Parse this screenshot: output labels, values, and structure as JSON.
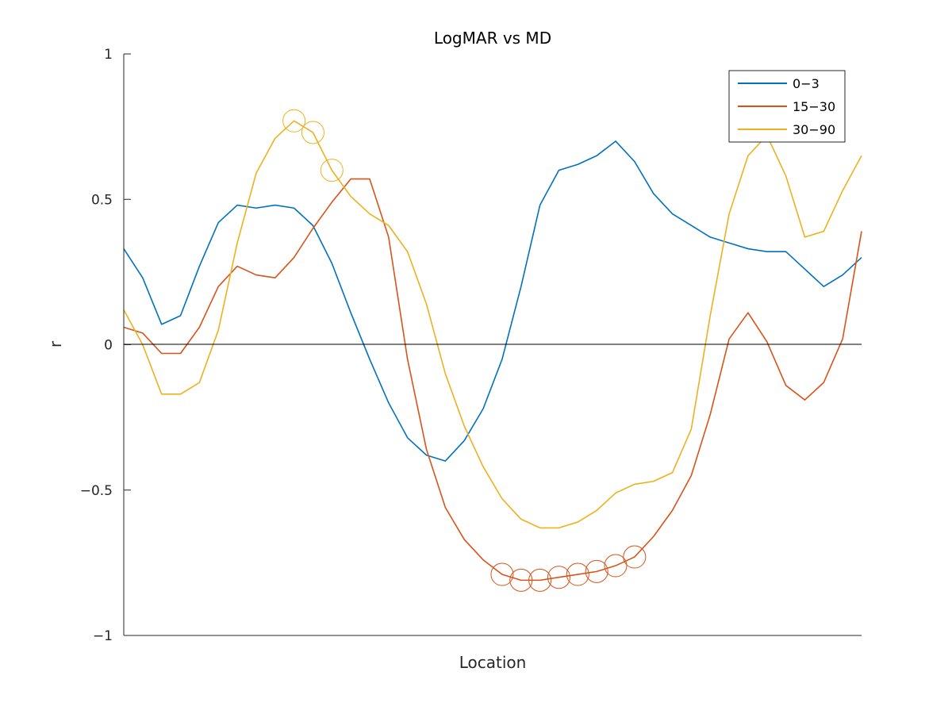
{
  "chart_data": {
    "type": "line",
    "title": "LogMAR vs MD",
    "xlabel": "Location",
    "ylabel": "r",
    "ylim": [
      -1,
      1
    ],
    "xlim": [
      1,
      40
    ],
    "yticks": [
      1,
      0.5,
      0,
      -0.5,
      -1
    ],
    "ytick_labels": [
      "1",
      "0.5",
      "0",
      "−0.5",
      "−1"
    ],
    "xticks_shown": false,
    "grid": false,
    "zero_line": true,
    "legend_position": "top-right",
    "x": [
      1,
      2,
      3,
      4,
      5,
      6,
      7,
      8,
      9,
      10,
      11,
      12,
      13,
      14,
      15,
      16,
      17,
      18,
      19,
      20,
      21,
      22,
      23,
      24,
      25,
      26,
      27,
      28,
      29,
      30,
      31,
      32,
      33,
      34,
      35,
      36,
      37,
      38,
      39,
      40
    ],
    "series": [
      {
        "name": "0−3",
        "color": "#0072BD",
        "values": [
          0.33,
          0.23,
          0.07,
          0.1,
          0.27,
          0.42,
          0.48,
          0.47,
          0.48,
          0.47,
          0.41,
          0.28,
          0.11,
          -0.05,
          -0.2,
          -0.32,
          -0.38,
          -0.4,
          -0.33,
          -0.22,
          -0.05,
          0.2,
          0.48,
          0.6,
          0.62,
          0.65,
          0.7,
          0.63,
          0.52,
          0.45,
          0.41,
          0.37,
          0.35,
          0.33,
          0.32,
          0.32,
          0.26,
          0.2,
          0.24,
          0.3
        ],
        "marked_indices": []
      },
      {
        "name": "15−30",
        "color": "#D95319",
        "values": [
          0.06,
          0.04,
          -0.03,
          -0.03,
          0.06,
          0.2,
          0.27,
          0.24,
          0.23,
          0.3,
          0.4,
          0.49,
          0.57,
          0.57,
          0.37,
          -0.05,
          -0.36,
          -0.56,
          -0.67,
          -0.74,
          -0.79,
          -0.81,
          -0.81,
          -0.8,
          -0.79,
          -0.78,
          -0.76,
          -0.73,
          -0.66,
          -0.57,
          -0.45,
          -0.24,
          0.02,
          0.11,
          0.01,
          -0.14,
          -0.19,
          -0.13,
          0.02,
          0.39
        ],
        "marked_indices": [
          20,
          21,
          22,
          23,
          24,
          25,
          26,
          27
        ]
      },
      {
        "name": "30−90",
        "color": "#EDB120",
        "values": [
          0.12,
          0.0,
          -0.17,
          -0.17,
          -0.13,
          0.05,
          0.35,
          0.59,
          0.71,
          0.77,
          0.73,
          0.6,
          0.51,
          0.45,
          0.41,
          0.32,
          0.14,
          -0.1,
          -0.28,
          -0.42,
          -0.53,
          -0.6,
          -0.63,
          -0.63,
          -0.61,
          -0.57,
          -0.51,
          -0.48,
          -0.47,
          -0.44,
          -0.29,
          0.1,
          0.45,
          0.65,
          0.72,
          0.58,
          0.37,
          0.39,
          0.53,
          0.65
        ],
        "marked_indices": [
          9,
          10,
          11
        ]
      }
    ]
  }
}
